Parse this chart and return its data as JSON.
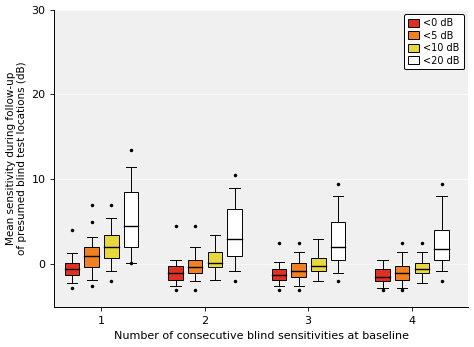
{
  "title": "",
  "xlabel": "Number of consecutive blind sensitivities at baseline",
  "ylabel": "Mean sensitivity during follow-up\nof presumed blind test locations (dB)",
  "ylim": [
    -5,
    30
  ],
  "yticks": [
    0,
    10,
    20,
    30
  ],
  "groups": [
    1,
    2,
    3,
    4
  ],
  "categories": [
    "<0 dB",
    "<5 dB",
    "<10 dB",
    "<20 dB"
  ],
  "colors": [
    "#e03020",
    "#f08020",
    "#e8d840",
    "#ffffff"
  ],
  "box_width": 0.14,
  "category_offsets": [
    -0.28,
    -0.09,
    0.1,
    0.29
  ],
  "bg_color": "#f0f0f0",
  "boxplot_data": {
    "1": {
      "<0 dB": {
        "q1": -1.2,
        "median": -0.5,
        "q3": 0.2,
        "whisker_low": -2.2,
        "whisker_high": 1.3,
        "fliers": [
          4.0,
          -2.8
        ]
      },
      "<5 dB": {
        "q1": -0.3,
        "median": 1.0,
        "q3": 2.0,
        "whisker_low": -1.8,
        "whisker_high": 3.2,
        "fliers": [
          5.0,
          7.0,
          -2.5
        ]
      },
      "<10 dB": {
        "q1": 0.8,
        "median": 2.0,
        "q3": 3.5,
        "whisker_low": -0.8,
        "whisker_high": 5.5,
        "fliers": [
          7.0,
          -2.0
        ]
      },
      "<20 dB": {
        "q1": 2.0,
        "median": 4.5,
        "q3": 8.5,
        "whisker_low": 0.2,
        "whisker_high": 11.5,
        "fliers": [
          13.5,
          0.2
        ]
      }
    },
    "2": {
      "<0 dB": {
        "q1": -1.8,
        "median": -1.0,
        "q3": -0.2,
        "whisker_low": -2.5,
        "whisker_high": 0.5,
        "fliers": [
          4.5,
          -3.0
        ]
      },
      "<5 dB": {
        "q1": -1.0,
        "median": -0.3,
        "q3": 0.5,
        "whisker_low": -2.0,
        "whisker_high": 2.0,
        "fliers": [
          4.5,
          -3.0
        ]
      },
      "<10 dB": {
        "q1": -0.3,
        "median": 0.2,
        "q3": 1.5,
        "whisker_low": -1.8,
        "whisker_high": 3.5,
        "fliers": []
      },
      "<20 dB": {
        "q1": 1.0,
        "median": 3.0,
        "q3": 6.5,
        "whisker_low": -0.8,
        "whisker_high": 9.0,
        "fliers": [
          10.5,
          -2.0
        ]
      }
    },
    "3": {
      "<0 dB": {
        "q1": -1.8,
        "median": -1.2,
        "q3": -0.5,
        "whisker_low": -2.5,
        "whisker_high": 0.3,
        "fliers": [
          2.5,
          -3.0
        ]
      },
      "<5 dB": {
        "q1": -1.5,
        "median": -0.8,
        "q3": 0.2,
        "whisker_low": -2.5,
        "whisker_high": 1.5,
        "fliers": [
          2.5,
          -3.0
        ]
      },
      "<10 dB": {
        "q1": -0.8,
        "median": -0.2,
        "q3": 0.8,
        "whisker_low": -2.0,
        "whisker_high": 3.0,
        "fliers": []
      },
      "<20 dB": {
        "q1": 0.5,
        "median": 2.0,
        "q3": 5.0,
        "whisker_low": -1.0,
        "whisker_high": 8.0,
        "fliers": [
          9.5,
          -2.0
        ]
      }
    },
    "4": {
      "<0 dB": {
        "q1": -2.0,
        "median": -1.5,
        "q3": -0.5,
        "whisker_low": -2.8,
        "whisker_high": 0.5,
        "fliers": [
          -3.0
        ]
      },
      "<5 dB": {
        "q1": -1.8,
        "median": -1.0,
        "q3": -0.2,
        "whisker_low": -2.8,
        "whisker_high": 1.5,
        "fliers": [
          2.5,
          -3.0
        ]
      },
      "<10 dB": {
        "q1": -1.0,
        "median": -0.5,
        "q3": 0.2,
        "whisker_low": -2.2,
        "whisker_high": 1.5,
        "fliers": [
          2.5
        ]
      },
      "<20 dB": {
        "q1": 0.5,
        "median": 1.8,
        "q3": 4.0,
        "whisker_low": -0.8,
        "whisker_high": 8.0,
        "fliers": [
          9.5,
          -2.0
        ]
      }
    }
  }
}
